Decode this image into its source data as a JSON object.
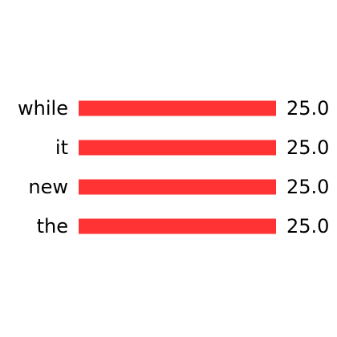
{
  "chart_data": {
    "type": "bar",
    "orientation": "horizontal",
    "categories": [
      "while",
      "it",
      "new",
      "the"
    ],
    "values": [
      25.0,
      25.0,
      25.0,
      25.0
    ],
    "value_labels": [
      "25.0",
      "25.0",
      "25.0",
      "25.0"
    ],
    "title": "",
    "xlabel": "",
    "ylabel": "",
    "xlim": [
      0,
      25
    ],
    "grid": false,
    "legend": "none",
    "colors": {
      "bar": "#ff3333",
      "text": "#000000",
      "background": "#ffffff"
    }
  }
}
